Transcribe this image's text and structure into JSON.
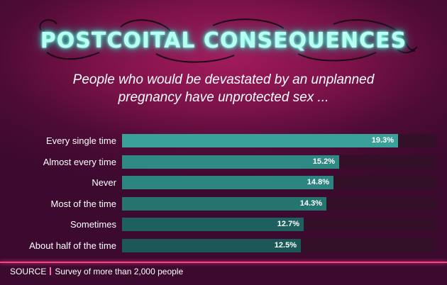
{
  "header": {
    "title": "POSTCOITAL CONSEQUENCES",
    "subtitle_line1": "People who would be devastated by an unplanned",
    "subtitle_line2": "pregnancy have unprotected sex ..."
  },
  "footer": {
    "source_label": "SOURCE",
    "source_text": "Survey of more than 2,000 people"
  },
  "colors": {
    "background": "#4d0b35",
    "neon": "#b9fff2",
    "accent": "#ff3d85",
    "track": "#331028",
    "bar_colors": [
      "#3aa09a",
      "#2f8985",
      "#2c8581",
      "#267470",
      "#1e605f",
      "#1c5858"
    ]
  },
  "chart_data": {
    "type": "bar",
    "orientation": "horizontal",
    "categories": [
      "Every single time",
      "Almost every time",
      "Never",
      "Most of the time",
      "Sometimes",
      "About half of the time"
    ],
    "values": [
      19.3,
      15.2,
      14.8,
      14.3,
      12.7,
      12.5
    ],
    "value_labels": [
      "19.3%",
      "15.2%",
      "14.8%",
      "14.3%",
      "12.7%",
      "12.5%"
    ],
    "xlim": [
      0,
      22
    ],
    "grid": false,
    "legend": "none"
  }
}
